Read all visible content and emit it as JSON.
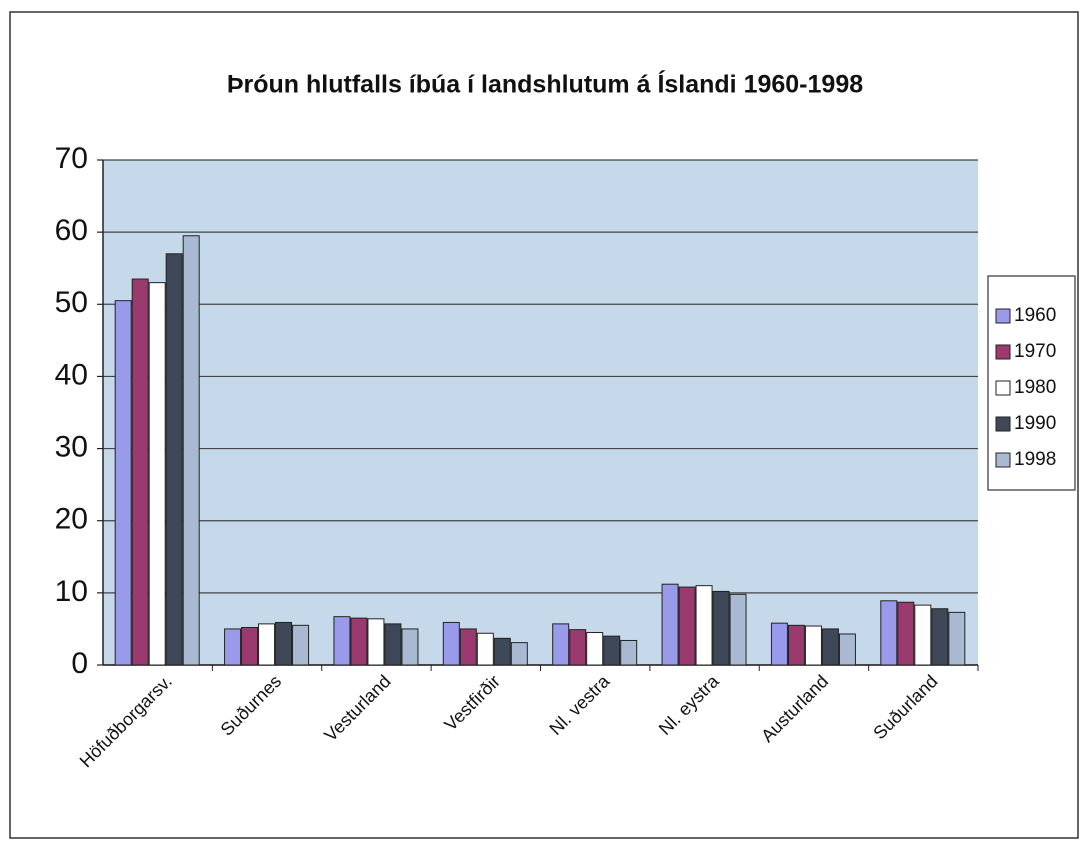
{
  "chart_data": {
    "type": "bar",
    "title": "Þróun hlutfalls íbúa í landshlutum á Íslandi 1960-1998",
    "categories": [
      "Höfuðborgarsv.",
      "Suðurnes",
      "Vesturland",
      "Vestfirðir",
      "Nl. vestra",
      "Nl. eystra",
      "Austurland",
      "Suðurland"
    ],
    "series": [
      {
        "name": "1960",
        "color": "#9a9aea",
        "values": [
          50.5,
          5,
          6.7,
          5.9,
          5.7,
          11.2,
          5.8,
          8.9
        ]
      },
      {
        "name": "1970",
        "color": "#9a3a6e",
        "values": [
          53.5,
          5.2,
          6.5,
          5,
          4.9,
          10.8,
          5.5,
          8.7
        ]
      },
      {
        "name": "1980",
        "color": "#ffffff",
        "values": [
          53,
          5.7,
          6.4,
          4.4,
          4.5,
          11,
          5.4,
          8.3
        ]
      },
      {
        "name": "1990",
        "color": "#3e4858",
        "values": [
          57,
          5.9,
          5.7,
          3.7,
          4,
          10.2,
          5,
          7.8
        ]
      },
      {
        "name": "1998",
        "color": "#a9b9d2",
        "values": [
          59.5,
          5.5,
          5,
          3.1,
          3.4,
          9.8,
          4.3,
          7.3
        ]
      }
    ],
    "ylim": [
      0,
      70
    ],
    "yticks": [
      0,
      10,
      20,
      30,
      40,
      50,
      60,
      70
    ],
    "grid": true,
    "legend": "right"
  }
}
